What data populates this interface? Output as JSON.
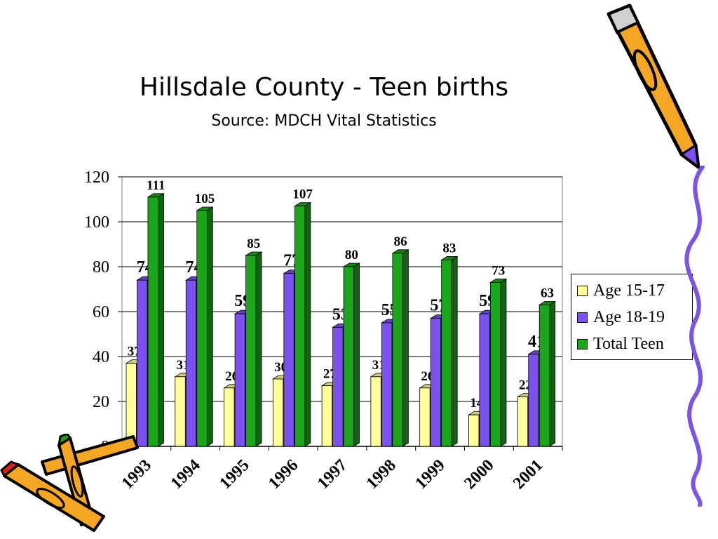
{
  "slide": {
    "title": "Hillsdale County - Teen births",
    "subtitle": "Source: MDCH Vital Statistics"
  },
  "colors": {
    "age_15_17": "#ffff99",
    "age_18_19": "#7b52ee",
    "total_teen": "#1aa51a",
    "gridline": "#000000",
    "plot_border": "#808080"
  },
  "chart_data": {
    "type": "bar",
    "categories": [
      "1993",
      "1994",
      "1995",
      "1996",
      "1997",
      "1998",
      "1999",
      "2000",
      "2001"
    ],
    "series": [
      {
        "name": "Age 15-17",
        "values": [
          37,
          31,
          26,
          30,
          27,
          31,
          26,
          14,
          22
        ]
      },
      {
        "name": "Age 18-19",
        "values": [
          74,
          74,
          59,
          77,
          53,
          55,
          57,
          59,
          41
        ]
      },
      {
        "name": "Total Teen",
        "values": [
          111,
          105,
          85,
          107,
          80,
          86,
          83,
          73,
          63
        ]
      }
    ],
    "ylim": [
      0,
      120
    ],
    "yticks": [
      0,
      20,
      40,
      60,
      80,
      100,
      120
    ],
    "grid": true,
    "legend_position": "right",
    "data_labels": true
  },
  "decorations": [
    "pencil-icon",
    "crayon-icon",
    "squiggle-border"
  ]
}
